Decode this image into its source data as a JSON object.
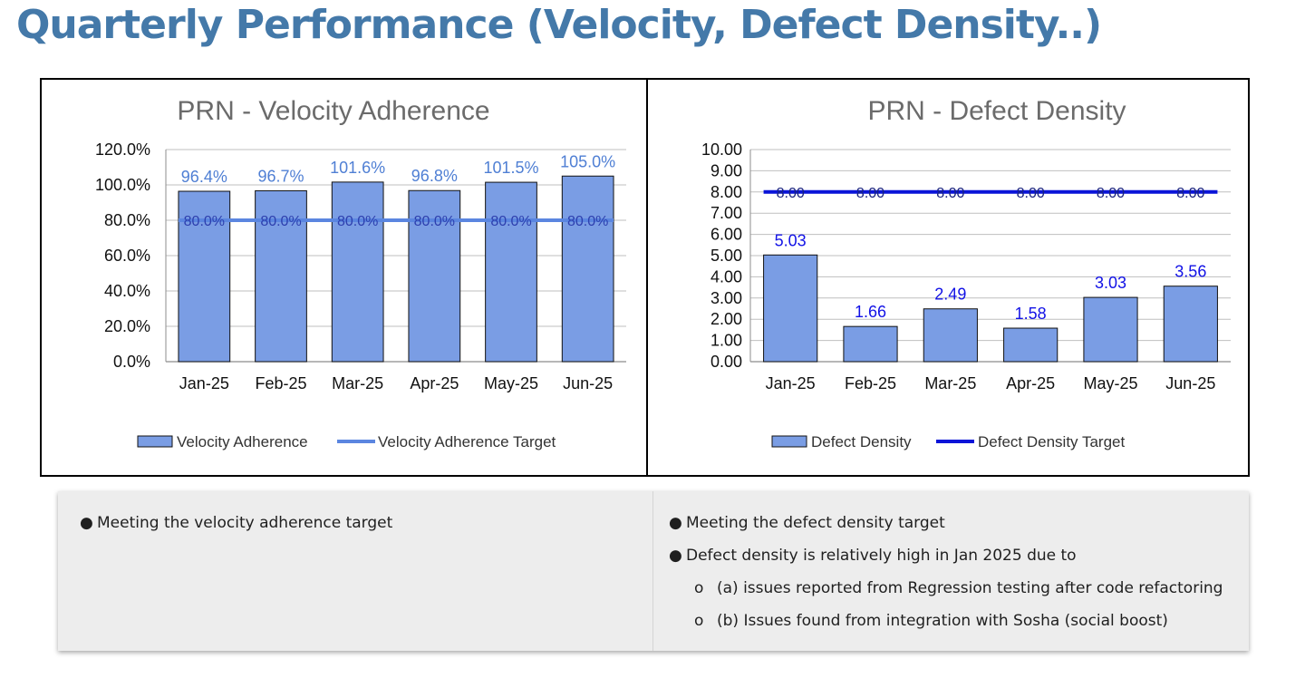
{
  "page": {
    "title": "Quarterly Performance (Velocity, Defect Density..)"
  },
  "chart_data": [
    {
      "type": "bar",
      "title": "PRN - Velocity Adherence",
      "categories": [
        "Jan-25",
        "Feb-25",
        "Mar-25",
        "Apr-25",
        "May-25",
        "Jun-25"
      ],
      "series": [
        {
          "name": "Velocity Adherence",
          "kind": "bar",
          "values": [
            96.4,
            96.7,
            101.6,
            96.8,
            101.5,
            105.0
          ],
          "labels": [
            "96.4%",
            "96.7%",
            "101.6%",
            "96.8%",
            "101.5%",
            "105.0%"
          ],
          "color": "#7a9de4",
          "label_color": "#4f7fd4"
        },
        {
          "name": "Velocity Adherence Target",
          "kind": "line",
          "values": [
            80,
            80,
            80,
            80,
            80,
            80
          ],
          "labels": [
            "80.0%",
            "80.0%",
            "80.0%",
            "80.0%",
            "80.0%",
            "80.0%"
          ],
          "color": "#5b86e0",
          "label_color": "#2d3fae"
        }
      ],
      "yticks": [
        "120.0%",
        "100.0%",
        "80.0%",
        "60.0%",
        "40.0%",
        "20.0%",
        "0.0%"
      ],
      "ylim": [
        0,
        120
      ],
      "ystep": 20,
      "grid": true,
      "legend": "bottom"
    },
    {
      "type": "bar",
      "title": "PRN - Defect Density",
      "categories": [
        "Jan-25",
        "Feb-25",
        "Mar-25",
        "Apr-25",
        "May-25",
        "Jun-25"
      ],
      "series": [
        {
          "name": "Defect Density",
          "kind": "bar",
          "values": [
            5.03,
            1.66,
            2.49,
            1.58,
            3.03,
            3.56
          ],
          "labels": [
            "5.03",
            "1.66",
            "2.49",
            "1.58",
            "3.03",
            "3.56"
          ],
          "color": "#7a9de4",
          "label_color": "#1212e6"
        },
        {
          "name": "Defect Density Target",
          "kind": "line",
          "values": [
            8,
            8,
            8,
            8,
            8,
            8
          ],
          "labels": [
            "8.00",
            "8.00",
            "8.00",
            "8.00",
            "8.00",
            "8.00"
          ],
          "color": "#0a14d8",
          "label_color": "#1a237e"
        }
      ],
      "yticks": [
        "10.00",
        "9.00",
        "8.00",
        "7.00",
        "6.00",
        "5.00",
        "4.00",
        "3.00",
        "2.00",
        "1.00",
        "0.00"
      ],
      "ylim": [
        0,
        10
      ],
      "ystep": 1,
      "grid": true,
      "legend": "bottom"
    }
  ],
  "notes": {
    "left": [
      {
        "bullet": "●",
        "text": "Meeting the velocity adherence target"
      }
    ],
    "right": [
      {
        "bullet": "●",
        "text": "Meeting the defect density target",
        "level": 1
      },
      {
        "bullet": "●",
        "text": "Defect density is relatively high in Jan 2025 due to",
        "level": 1
      },
      {
        "bullet": "o",
        "text": "(a) issues reported from Regression testing after code refactoring",
        "level": 2
      },
      {
        "bullet": "o",
        "text": "(b) Issues found from integration with Sosha (social boost)",
        "level": 2
      }
    ]
  }
}
